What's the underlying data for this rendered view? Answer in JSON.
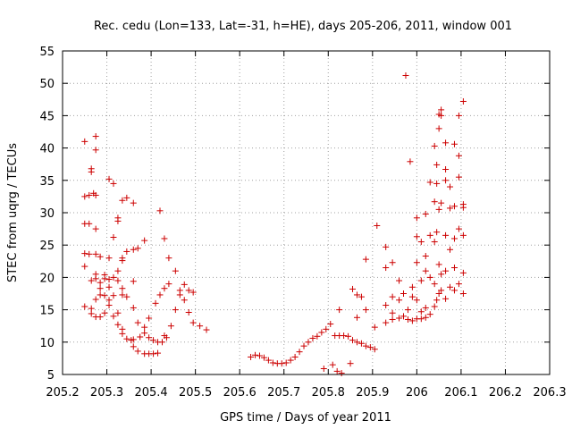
{
  "chart_data": {
    "type": "scatter",
    "title": "Rec. cedu (Lon=133, Lat=-31, h=HE), days 205-206, 2011, window 001",
    "xlabel": "GPS time / Days of year 2011",
    "ylabel": "STEC from uqrg / TECUs",
    "xlim": [
      205.2,
      206.3
    ],
    "ylim": [
      5,
      55
    ],
    "x_ticks": [
      "205.2",
      "205.3",
      "205.4",
      "205.5",
      "205.6",
      "205.7",
      "205.8",
      "205.9",
      "206",
      "206.1",
      "206.2",
      "206.3"
    ],
    "y_ticks": [
      "5",
      "10",
      "15",
      "20",
      "25",
      "30",
      "35",
      "40",
      "45",
      "50",
      "55"
    ],
    "grid": true,
    "marker": "+",
    "color": "#cc0000",
    "points": [
      [
        205.25,
        41.0
      ],
      [
        205.25,
        32.5
      ],
      [
        205.25,
        28.3
      ],
      [
        205.25,
        23.7
      ],
      [
        205.25,
        21.7
      ],
      [
        205.25,
        15.5
      ],
      [
        205.26,
        32.7
      ],
      [
        205.26,
        28.3
      ],
      [
        205.26,
        23.6
      ],
      [
        205.265,
        36.8
      ],
      [
        205.265,
        36.3
      ],
      [
        205.265,
        19.5
      ],
      [
        205.265,
        15.2
      ],
      [
        205.265,
        14.4
      ],
      [
        205.27,
        33.0
      ],
      [
        205.275,
        41.8
      ],
      [
        205.275,
        39.7
      ],
      [
        205.275,
        32.7
      ],
      [
        205.275,
        27.5
      ],
      [
        205.275,
        23.6
      ],
      [
        205.275,
        20.5
      ],
      [
        205.275,
        19.8
      ],
      [
        205.275,
        16.6
      ],
      [
        205.275,
        13.9
      ],
      [
        205.285,
        23.2
      ],
      [
        205.285,
        19.2
      ],
      [
        205.285,
        18.3
      ],
      [
        205.285,
        17.3
      ],
      [
        205.285,
        13.9
      ],
      [
        205.295,
        20.4
      ],
      [
        205.295,
        19.8
      ],
      [
        205.295,
        17.2
      ],
      [
        205.295,
        14.5
      ],
      [
        205.305,
        35.2
      ],
      [
        205.305,
        23.0
      ],
      [
        205.305,
        19.7
      ],
      [
        205.305,
        18.5
      ],
      [
        205.305,
        16.5
      ],
      [
        205.305,
        15.7
      ],
      [
        205.315,
        34.5
      ],
      [
        205.315,
        26.2
      ],
      [
        205.315,
        20.0
      ],
      [
        205.315,
        17.2
      ],
      [
        205.315,
        14.0
      ],
      [
        205.325,
        29.2
      ],
      [
        205.325,
        28.7
      ],
      [
        205.325,
        21.0
      ],
      [
        205.325,
        19.5
      ],
      [
        205.325,
        14.5
      ],
      [
        205.325,
        12.7
      ],
      [
        205.335,
        31.9
      ],
      [
        205.335,
        23.0
      ],
      [
        205.335,
        22.6
      ],
      [
        205.335,
        18.3
      ],
      [
        205.335,
        17.3
      ],
      [
        205.335,
        12.0
      ],
      [
        205.335,
        11.3
      ],
      [
        205.345,
        32.3
      ],
      [
        205.345,
        24.0
      ],
      [
        205.345,
        17.0
      ],
      [
        205.345,
        10.5
      ],
      [
        205.355,
        10.3
      ],
      [
        205.36,
        31.5
      ],
      [
        205.36,
        24.3
      ],
      [
        205.36,
        19.4
      ],
      [
        205.36,
        15.3
      ],
      [
        205.36,
        9.3
      ],
      [
        205.36,
        10.4
      ],
      [
        205.37,
        24.5
      ],
      [
        205.37,
        13.0
      ],
      [
        205.37,
        8.6
      ],
      [
        205.375,
        10.8
      ],
      [
        205.385,
        25.7
      ],
      [
        205.385,
        12.3
      ],
      [
        205.385,
        11.4
      ],
      [
        205.385,
        8.2
      ],
      [
        205.395,
        13.7
      ],
      [
        205.395,
        10.7
      ],
      [
        205.395,
        8.2
      ],
      [
        205.405,
        8.2
      ],
      [
        205.405,
        10.3
      ],
      [
        205.41,
        16.0
      ],
      [
        205.415,
        10.0
      ],
      [
        205.415,
        8.3
      ],
      [
        205.42,
        30.3
      ],
      [
        205.42,
        17.3
      ],
      [
        205.425,
        10.0
      ],
      [
        205.43,
        18.3
      ],
      [
        205.43,
        26.0
      ],
      [
        205.43,
        11.0
      ],
      [
        205.435,
        10.7
      ],
      [
        205.44,
        19.0
      ],
      [
        205.44,
        23.0
      ],
      [
        205.445,
        12.5
      ],
      [
        205.455,
        21.0
      ],
      [
        205.455,
        15.0
      ],
      [
        205.465,
        18.0
      ],
      [
        205.465,
        17.3
      ],
      [
        205.475,
        18.9
      ],
      [
        205.475,
        16.5
      ],
      [
        205.485,
        18.0
      ],
      [
        205.485,
        14.6
      ],
      [
        205.495,
        17.7
      ],
      [
        205.495,
        13.0
      ],
      [
        205.51,
        12.5
      ],
      [
        205.525,
        11.9
      ],
      [
        205.625,
        7.7
      ],
      [
        205.635,
        8.0
      ],
      [
        205.645,
        7.9
      ],
      [
        205.655,
        7.6
      ],
      [
        205.665,
        7.2
      ],
      [
        205.675,
        6.8
      ],
      [
        205.685,
        6.7
      ],
      [
        205.695,
        6.7
      ],
      [
        205.705,
        6.8
      ],
      [
        205.715,
        7.2
      ],
      [
        205.725,
        7.7
      ],
      [
        205.735,
        8.5
      ],
      [
        205.745,
        9.4
      ],
      [
        205.755,
        10.0
      ],
      [
        205.765,
        10.6
      ],
      [
        205.775,
        10.9
      ],
      [
        205.785,
        11.5
      ],
      [
        205.79,
        5.9
      ],
      [
        205.795,
        12.0
      ],
      [
        205.805,
        12.8
      ],
      [
        205.81,
        6.5
      ],
      [
        205.815,
        11.0
      ],
      [
        205.82,
        5.5
      ],
      [
        205.825,
        15.0
      ],
      [
        205.825,
        11.0
      ],
      [
        205.83,
        5.2
      ],
      [
        205.835,
        11.0
      ],
      [
        205.845,
        10.9
      ],
      [
        205.85,
        6.7
      ],
      [
        205.855,
        18.2
      ],
      [
        205.855,
        10.3
      ],
      [
        205.865,
        17.3
      ],
      [
        205.865,
        13.8
      ],
      [
        205.865,
        10.0
      ],
      [
        205.875,
        17.0
      ],
      [
        205.875,
        9.8
      ],
      [
        205.885,
        22.8
      ],
      [
        205.885,
        15.0
      ],
      [
        205.885,
        9.4
      ],
      [
        205.895,
        9.2
      ],
      [
        205.905,
        8.9
      ],
      [
        205.905,
        12.3
      ],
      [
        205.91,
        28.0
      ],
      [
        205.93,
        24.7
      ],
      [
        205.93,
        21.5
      ],
      [
        205.93,
        15.7
      ],
      [
        205.93,
        13.0
      ],
      [
        205.945,
        22.3
      ],
      [
        205.945,
        17.0
      ],
      [
        205.945,
        14.5
      ],
      [
        205.945,
        13.5
      ],
      [
        205.96,
        19.5
      ],
      [
        205.96,
        16.5
      ],
      [
        205.96,
        13.7
      ],
      [
        205.97,
        17.5
      ],
      [
        205.97,
        14.0
      ],
      [
        205.975,
        51.2
      ],
      [
        205.98,
        15.0
      ],
      [
        205.98,
        13.5
      ],
      [
        205.985,
        37.9
      ],
      [
        205.99,
        18.5
      ],
      [
        205.99,
        17.0
      ],
      [
        205.99,
        13.3
      ],
      [
        206.0,
        29.2
      ],
      [
        206.0,
        26.3
      ],
      [
        206.0,
        22.3
      ],
      [
        206.0,
        16.5
      ],
      [
        206.0,
        13.6
      ],
      [
        206.01,
        25.5
      ],
      [
        206.01,
        19.5
      ],
      [
        206.01,
        14.7
      ],
      [
        206.01,
        13.6
      ],
      [
        206.02,
        29.8
      ],
      [
        206.02,
        23.3
      ],
      [
        206.02,
        21.0
      ],
      [
        206.02,
        15.3
      ],
      [
        206.02,
        13.8
      ],
      [
        206.03,
        34.7
      ],
      [
        206.03,
        26.5
      ],
      [
        206.03,
        20.0
      ],
      [
        206.03,
        14.3
      ],
      [
        206.04,
        40.3
      ],
      [
        206.04,
        31.7
      ],
      [
        206.04,
        25.5
      ],
      [
        206.04,
        19.0
      ],
      [
        206.04,
        15.5
      ],
      [
        206.045,
        37.4
      ],
      [
        206.045,
        34.5
      ],
      [
        206.045,
        27.0
      ],
      [
        206.045,
        16.5
      ],
      [
        206.05,
        45.2
      ],
      [
        206.05,
        43.0
      ],
      [
        206.05,
        30.5
      ],
      [
        206.05,
        22.0
      ],
      [
        206.05,
        17.5
      ],
      [
        206.055,
        45.9
      ],
      [
        206.055,
        45.0
      ],
      [
        206.055,
        31.5
      ],
      [
        206.055,
        20.5
      ],
      [
        206.055,
        18.0
      ],
      [
        206.065,
        40.8
      ],
      [
        206.065,
        36.7
      ],
      [
        206.065,
        35.0
      ],
      [
        206.065,
        26.5
      ],
      [
        206.065,
        21.0
      ],
      [
        206.065,
        16.7
      ],
      [
        206.075,
        34.0
      ],
      [
        206.075,
        30.7
      ],
      [
        206.075,
        24.3
      ],
      [
        206.075,
        18.5
      ],
      [
        206.085,
        40.6
      ],
      [
        206.085,
        31.0
      ],
      [
        206.085,
        26.0
      ],
      [
        206.085,
        21.5
      ],
      [
        206.085,
        18.0
      ],
      [
        206.095,
        45.0
      ],
      [
        206.095,
        38.8
      ],
      [
        206.095,
        35.5
      ],
      [
        206.095,
        27.5
      ],
      [
        206.095,
        19.0
      ],
      [
        206.105,
        47.2
      ],
      [
        206.105,
        31.3
      ],
      [
        206.105,
        30.8
      ],
      [
        206.105,
        26.5
      ],
      [
        206.105,
        20.7
      ],
      [
        206.105,
        17.5
      ]
    ]
  }
}
